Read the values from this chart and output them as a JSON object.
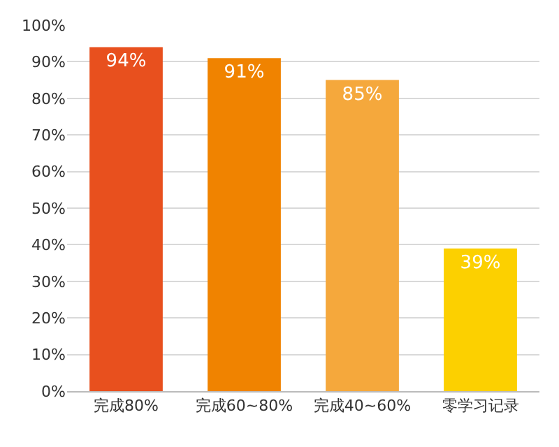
{
  "chart_data": {
    "type": "bar",
    "categories": [
      "完成80%",
      "完成60~80%",
      "完成40~60%",
      "零学习记录"
    ],
    "values": [
      94,
      91,
      85,
      39
    ],
    "colors": [
      "#e8501e",
      "#f08300",
      "#f5a83c",
      "#fcd000"
    ],
    "value_labels": [
      "94%",
      "91%",
      "85%",
      "39%"
    ],
    "ylim": [
      0,
      100
    ],
    "yticks": [
      {
        "value": 0,
        "label": "0%"
      },
      {
        "value": 10,
        "label": "10%"
      },
      {
        "value": 20,
        "label": "20%"
      },
      {
        "value": 30,
        "label": "30%"
      },
      {
        "value": 40,
        "label": "40%"
      },
      {
        "value": 50,
        "label": "50%"
      },
      {
        "value": 60,
        "label": "60%"
      },
      {
        "value": 70,
        "label": "70%"
      },
      {
        "value": 80,
        "label": "80%"
      },
      {
        "value": 90,
        "label": "90%"
      },
      {
        "value": 100,
        "label": "100%"
      }
    ],
    "grid": "y"
  }
}
